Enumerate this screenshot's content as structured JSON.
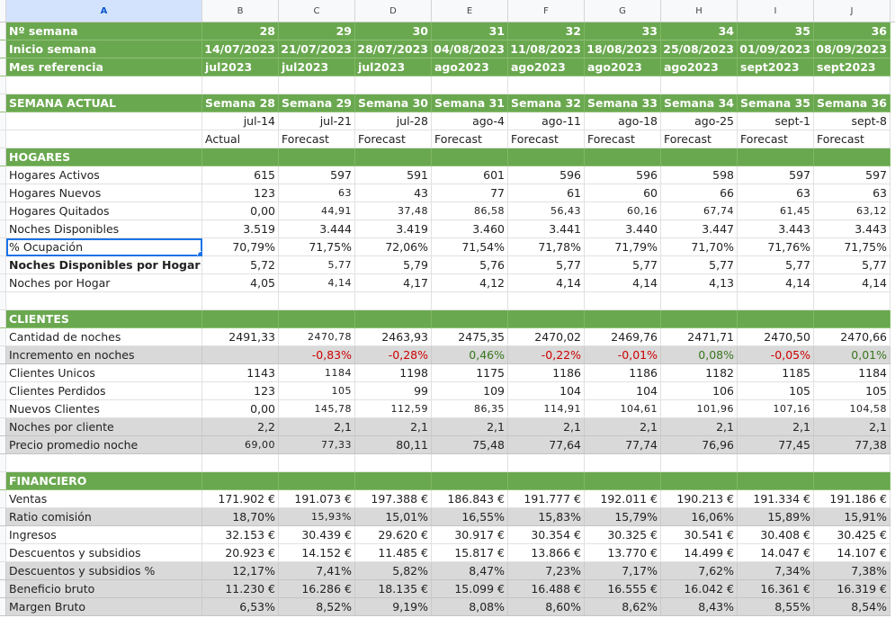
{
  "columns": [
    "A",
    "B",
    "C",
    "D",
    "E",
    "F",
    "G",
    "H",
    "I",
    "J"
  ],
  "rows": [
    {
      "style": "green",
      "cells": [
        "Nº semana",
        "28",
        "29",
        "30",
        "31",
        "32",
        "33",
        "34",
        "35",
        "36"
      ]
    },
    {
      "style": "green",
      "cells": [
        "Inicio semana",
        "14/07/2023",
        "21/07/2023",
        "28/07/2023",
        "04/08/2023",
        "11/08/2023",
        "18/08/2023",
        "25/08/2023",
        "01/09/2023",
        "08/09/2023"
      ]
    },
    {
      "style": "green",
      "align": "left",
      "cells": [
        "Mes referencia",
        "jul2023",
        "jul2023",
        "jul2023",
        "ago2023",
        "ago2023",
        "ago2023",
        "ago2023",
        "sept2023",
        "sept2023"
      ]
    },
    {
      "style": "blank",
      "cells": [
        "",
        "",
        "",
        "",
        "",
        "",
        "",
        "",
        "",
        ""
      ]
    },
    {
      "style": "green",
      "cells": [
        "SEMANA ACTUAL",
        "Semana 28",
        "Semana 29",
        "Semana 30",
        "Semana 31",
        "Semana 32",
        "Semana 33",
        "Semana 34",
        "Semana 35",
        "Semana 36"
      ]
    },
    {
      "style": "plain",
      "cells": [
        "",
        "jul-14",
        "jul-21",
        "jul-28",
        "ago-4",
        "ago-11",
        "ago-18",
        "ago-25",
        "sept-1",
        "sept-8"
      ]
    },
    {
      "style": "plain",
      "align": "left",
      "cells": [
        "",
        "Actual",
        "Forecast",
        "Forecast",
        "Forecast",
        "Forecast",
        "Forecast",
        "Forecast",
        "Forecast",
        "Forecast"
      ]
    },
    {
      "style": "green",
      "cells": [
        "HOGARES",
        "",
        "",
        "",
        "",
        "",
        "",
        "",
        "",
        ""
      ]
    },
    {
      "style": "plain",
      "cells": [
        "Hogares Activos",
        "615",
        "597",
        "591",
        "601",
        "596",
        "596",
        "598",
        "597",
        "597"
      ]
    },
    {
      "style": "plain",
      "cells": [
        "Hogares Nuevos",
        "123",
        "63",
        "43",
        "77",
        "61",
        "60",
        "66",
        "63",
        "63"
      ],
      "small": [
        2
      ]
    },
    {
      "style": "plain",
      "cells": [
        "Hogares Quitados",
        "0,00",
        "44,91",
        "37,48",
        "86,58",
        "56,43",
        "60,16",
        "67,74",
        "61,45",
        "63,12"
      ],
      "small": [
        2,
        3,
        4,
        5,
        6,
        7,
        8,
        9
      ]
    },
    {
      "style": "plain",
      "cells": [
        "Noches Disponibles",
        "3.519",
        "3.444",
        "3.419",
        "3.460",
        "3.441",
        "3.440",
        "3.447",
        "3.443",
        "3.443"
      ]
    },
    {
      "style": "plain",
      "selected": true,
      "cells": [
        "% Ocupación",
        "70,79%",
        "71,75%",
        "72,06%",
        "71,54%",
        "71,78%",
        "71,79%",
        "71,70%",
        "71,76%",
        "71,75%"
      ]
    },
    {
      "style": "plain",
      "boldLabel": true,
      "cells": [
        "Noches Disponibles por Hogar",
        "5,72",
        "5,77",
        "5,79",
        "5,76",
        "5,77",
        "5,77",
        "5,77",
        "5,77",
        "5,77"
      ],
      "small": [
        2
      ]
    },
    {
      "style": "plain",
      "cells": [
        "Noches por Hogar",
        "4,05",
        "4,14",
        "4,17",
        "4,12",
        "4,14",
        "4,14",
        "4,13",
        "4,14",
        "4,14"
      ],
      "small": [
        2
      ]
    },
    {
      "style": "blank",
      "cells": [
        "",
        "",
        "",
        "",
        "",
        "",
        "",
        "",
        "",
        ""
      ]
    },
    {
      "style": "green",
      "cells": [
        "CLIENTES",
        "",
        "",
        "",
        "",
        "",
        "",
        "",
        "",
        ""
      ]
    },
    {
      "style": "plain",
      "cells": [
        "Cantidad de noches",
        "2491,33",
        "2470,78",
        "2463,93",
        "2475,35",
        "2470,02",
        "2469,76",
        "2471,71",
        "2470,50",
        "2470,66"
      ],
      "small": [
        2
      ]
    },
    {
      "style": "gray",
      "cells": [
        "Incremento en noches",
        "",
        "-0,83%",
        "-0,28%",
        "0,46%",
        "-0,22%",
        "-0,01%",
        "0,08%",
        "-0,05%",
        "0,01%"
      ],
      "colors": [
        "",
        "",
        "neg",
        "neg",
        "pos",
        "neg",
        "neg",
        "pos",
        "neg",
        "pos"
      ]
    },
    {
      "style": "plain",
      "cells": [
        "Clientes Unicos",
        "1143",
        "1184",
        "1198",
        "1175",
        "1186",
        "1186",
        "1182",
        "1185",
        "1184"
      ],
      "small": [
        2
      ]
    },
    {
      "style": "plain",
      "cells": [
        "Clientes Perdidos",
        "123",
        "105",
        "99",
        "109",
        "104",
        "104",
        "106",
        "105",
        "105"
      ],
      "small": [
        2
      ]
    },
    {
      "style": "plain",
      "cells": [
        "Nuevos Clientes",
        "0,00",
        "145,78",
        "112,59",
        "86,35",
        "114,91",
        "104,61",
        "101,96",
        "107,16",
        "104,58"
      ],
      "small": [
        2,
        3,
        4,
        5,
        6,
        7,
        8,
        9
      ]
    },
    {
      "style": "gray",
      "cells": [
        "Noches por cliente",
        "2,2",
        "2,1",
        "2,1",
        "2,1",
        "2,1",
        "2,1",
        "2,1",
        "2,1",
        "2,1"
      ]
    },
    {
      "style": "gray",
      "cells": [
        "Precio promedio noche",
        "69,00",
        "77,33",
        "80,11",
        "75,48",
        "77,64",
        "77,74",
        "76,96",
        "77,45",
        "77,38"
      ],
      "small": [
        1,
        2
      ]
    },
    {
      "style": "blank",
      "cells": [
        "",
        "",
        "",
        "",
        "",
        "",
        "",
        "",
        "",
        ""
      ]
    },
    {
      "style": "green",
      "cells": [
        "FINANCIERO",
        "",
        "",
        "",
        "",
        "",
        "",
        "",
        "",
        ""
      ]
    },
    {
      "style": "plain",
      "cells": [
        "Ventas",
        "171.902 €",
        "191.073 €",
        "197.388 €",
        "186.843 €",
        "191.777 €",
        "192.011 €",
        "190.213 €",
        "191.334 €",
        "191.186 €"
      ]
    },
    {
      "style": "gray",
      "cells": [
        "Ratio comisión",
        "18,70%",
        "15,93%",
        "15,01%",
        "16,55%",
        "15,83%",
        "15,79%",
        "16,06%",
        "15,89%",
        "15,91%"
      ],
      "small": [
        2
      ]
    },
    {
      "style": "plain",
      "cells": [
        "Ingresos",
        "32.153 €",
        "30.439 €",
        "29.620 €",
        "30.917 €",
        "30.354 €",
        "30.325 €",
        "30.541 €",
        "30.408 €",
        "30.425 €"
      ]
    },
    {
      "style": "plain",
      "cells": [
        "Descuentos y subsidios",
        "20.923 €",
        "14.152 €",
        "11.485 €",
        "15.817 €",
        "13.866 €",
        "13.770 €",
        "14.499 €",
        "14.047 €",
        "14.107 €"
      ]
    },
    {
      "style": "gray",
      "cells": [
        "Descuentos y subsidios %",
        "12,17%",
        "7,41%",
        "5,82%",
        "8,47%",
        "7,23%",
        "7,17%",
        "7,62%",
        "7,34%",
        "7,38%"
      ]
    },
    {
      "style": "gray",
      "cells": [
        "Beneficio bruto",
        "11.230 €",
        "16.286 €",
        "18.135 €",
        "15.099 €",
        "16.488 €",
        "16.555 €",
        "16.042 €",
        "16.361 €",
        "16.319 €"
      ]
    },
    {
      "style": "gray",
      "cells": [
        "Margen Bruto",
        "6,53%",
        "8,52%",
        "9,19%",
        "8,08%",
        "8,60%",
        "8,62%",
        "8,43%",
        "8,55%",
        "8,54%"
      ]
    }
  ]
}
